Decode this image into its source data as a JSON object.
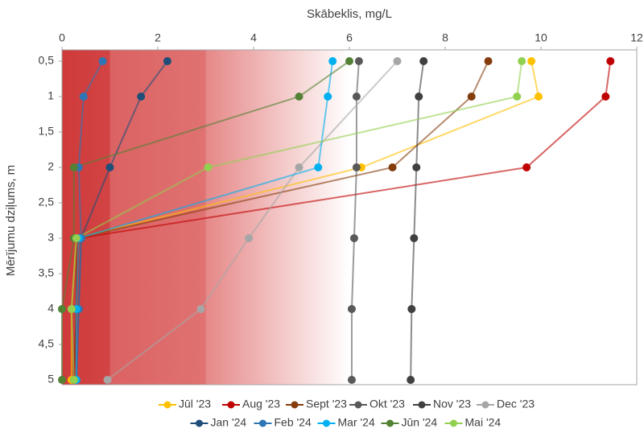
{
  "chart_data": {
    "type": "line",
    "orientation": "vertical-depth",
    "xlabel": "Mērījumu dziļums, m",
    "ylabel": "Skābeklis, mg/L",
    "x": [
      0.5,
      1,
      2,
      3,
      4,
      5
    ],
    "xlim": [
      0.5,
      5
    ],
    "xticks": [
      {
        "value": 0.5,
        "label": "0,5"
      },
      1,
      {
        "value": 1.5,
        "label": "1,5"
      },
      2,
      {
        "value": 2.5,
        "label": "2,5"
      },
      3,
      {
        "value": 3.5,
        "label": "3,5"
      },
      4,
      {
        "value": 4.5,
        "label": "4,5"
      },
      5
    ],
    "ylim": [
      0,
      12
    ],
    "yticks": [
      0,
      2,
      4,
      6,
      8,
      10,
      12
    ],
    "zones": [
      {
        "from": 0,
        "to": 1,
        "colors": [
          "#cf3a3a",
          "#d24444"
        ]
      },
      {
        "from": 1,
        "to": 3,
        "colors": [
          "#db6262",
          "#e07272"
        ]
      },
      {
        "from": 3,
        "to": 6,
        "colors": [
          "#e68888",
          "#ffffff"
        ]
      }
    ],
    "series": [
      {
        "name": "Jūl '23",
        "color": "#ffc000",
        "values": [
          9.8,
          9.95,
          6.25,
          0.3,
          0.2,
          0.2
        ]
      },
      {
        "name": "Aug '23",
        "color": "#c00000",
        "values": [
          11.45,
          11.35,
          9.7,
          0.35,
          0.3,
          0.25
        ]
      },
      {
        "name": "Sept '23",
        "color": "#843c0c",
        "values": [
          8.9,
          8.55,
          6.9,
          0.3,
          0.3,
          0.25
        ]
      },
      {
        "name": "Okt '23",
        "color": "#595959",
        "values": [
          6.2,
          6.15,
          6.15,
          6.1,
          6.05,
          6.05
        ]
      },
      {
        "name": "Nov '23",
        "color": "#404040",
        "values": [
          7.55,
          7.45,
          7.4,
          7.35,
          7.3,
          7.28
        ]
      },
      {
        "name": "Dec '23",
        "color": "#a6a6a6",
        "x": [
          0.5,
          2,
          3,
          4,
          5
        ],
        "values": [
          7.0,
          4.95,
          3.9,
          2.9,
          0.95
        ]
      },
      {
        "name": "Jan '24",
        "color": "#1f4e79",
        "values": [
          2.2,
          1.65,
          1.0,
          0.4,
          0.35,
          0.3
        ]
      },
      {
        "name": "Feb '24",
        "color": "#2e75b6",
        "values": [
          0.85,
          0.45,
          0.35,
          0.4,
          0.35,
          0.3
        ]
      },
      {
        "name": "Mar '24",
        "color": "#00b0f0",
        "values": [
          5.65,
          5.55,
          5.35,
          0.35,
          0.3,
          0.3
        ]
      },
      {
        "name": "Jūn '24",
        "color": "#548235",
        "values": [
          6.0,
          4.95,
          0.25,
          0.25,
          0.0,
          0.0
        ]
      },
      {
        "name": "Mai '24",
        "color": "#92d050",
        "values": [
          9.6,
          9.5,
          3.05,
          0.3,
          0.2,
          0.25
        ]
      }
    ]
  }
}
